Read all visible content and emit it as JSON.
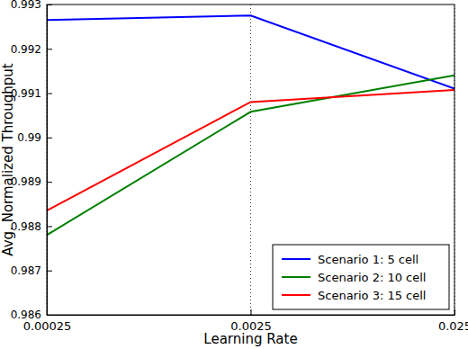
{
  "chart_data": {
    "type": "line",
    "x_label": "Learning Rate",
    "y_label": "Avg. Normalized Throughput",
    "x": [
      0.00025,
      0.0025,
      0.025
    ],
    "series": [
      {
        "name": "Scenario 1: 5 cell",
        "color": "#0000ff",
        "values": [
          0.99265,
          0.99275,
          0.9911
        ]
      },
      {
        "name": "Scenario 2: 10 cell",
        "color": "#008000",
        "values": [
          0.9878,
          0.99058,
          0.9914
        ]
      },
      {
        "name": "Scenario 3: 15 cell",
        "color": "#ff0000",
        "values": [
          0.98835,
          0.9908,
          0.99107
        ]
      }
    ],
    "log": "x",
    "xlim": [
      0.00025,
      0.025
    ],
    "xticks": [
      0.00025,
      0.0025,
      0.025
    ],
    "ylim": [
      0.986,
      0.993
    ],
    "yticks": [
      0.986,
      0.987,
      0.988,
      0.989,
      0.99,
      0.991,
      0.992,
      0.993
    ],
    "grid": "x",
    "legend": "lower right"
  }
}
